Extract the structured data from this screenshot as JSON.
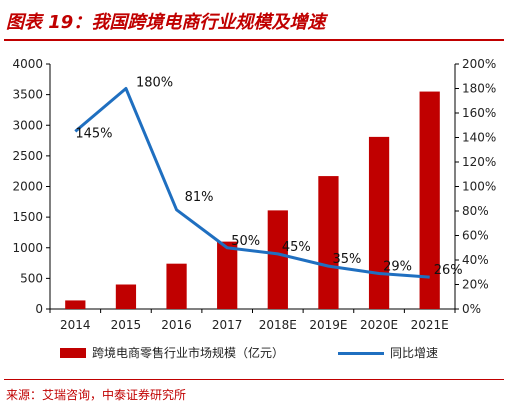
{
  "header": {
    "title": "图表 19：我国跨境电商行业规模及增速"
  },
  "source": "来源：艾瑞咨询，中泰证券研究所",
  "chart_data": {
    "type": "bar+line",
    "categories": [
      "2014",
      "2015",
      "2016",
      "2017",
      "2018E",
      "2019E",
      "2020E",
      "2021E"
    ],
    "series": [
      {
        "name": "跨境电商零售行业市场规模（亿元）",
        "type": "bar",
        "axis": "left",
        "values": [
          140,
          400,
          740,
          1100,
          1610,
          2170,
          2810,
          3550
        ]
      },
      {
        "name": "同比增速",
        "type": "line",
        "axis": "right",
        "values": [
          145,
          180,
          81,
          50,
          45,
          35,
          29,
          26
        ],
        "labels": [
          "145%",
          "180%",
          "81%",
          "50%",
          "45%",
          "35%",
          "29%",
          "26%"
        ]
      }
    ],
    "y_left": {
      "min": 0,
      "max": 4000,
      "ticks": [
        "0",
        "500",
        "1000",
        "1500",
        "2000",
        "2500",
        "3000",
        "3500",
        "4000"
      ]
    },
    "y_right": {
      "min": 0,
      "max": 200,
      "ticks": [
        "0%",
        "20%",
        "40%",
        "60%",
        "80%",
        "100%",
        "120%",
        "140%",
        "160%",
        "180%",
        "200%"
      ]
    },
    "grid": false,
    "legend_position": "bottom",
    "colors": {
      "bar": "#c00000",
      "line": "#1f6fc0",
      "accent": "#c00000"
    }
  }
}
